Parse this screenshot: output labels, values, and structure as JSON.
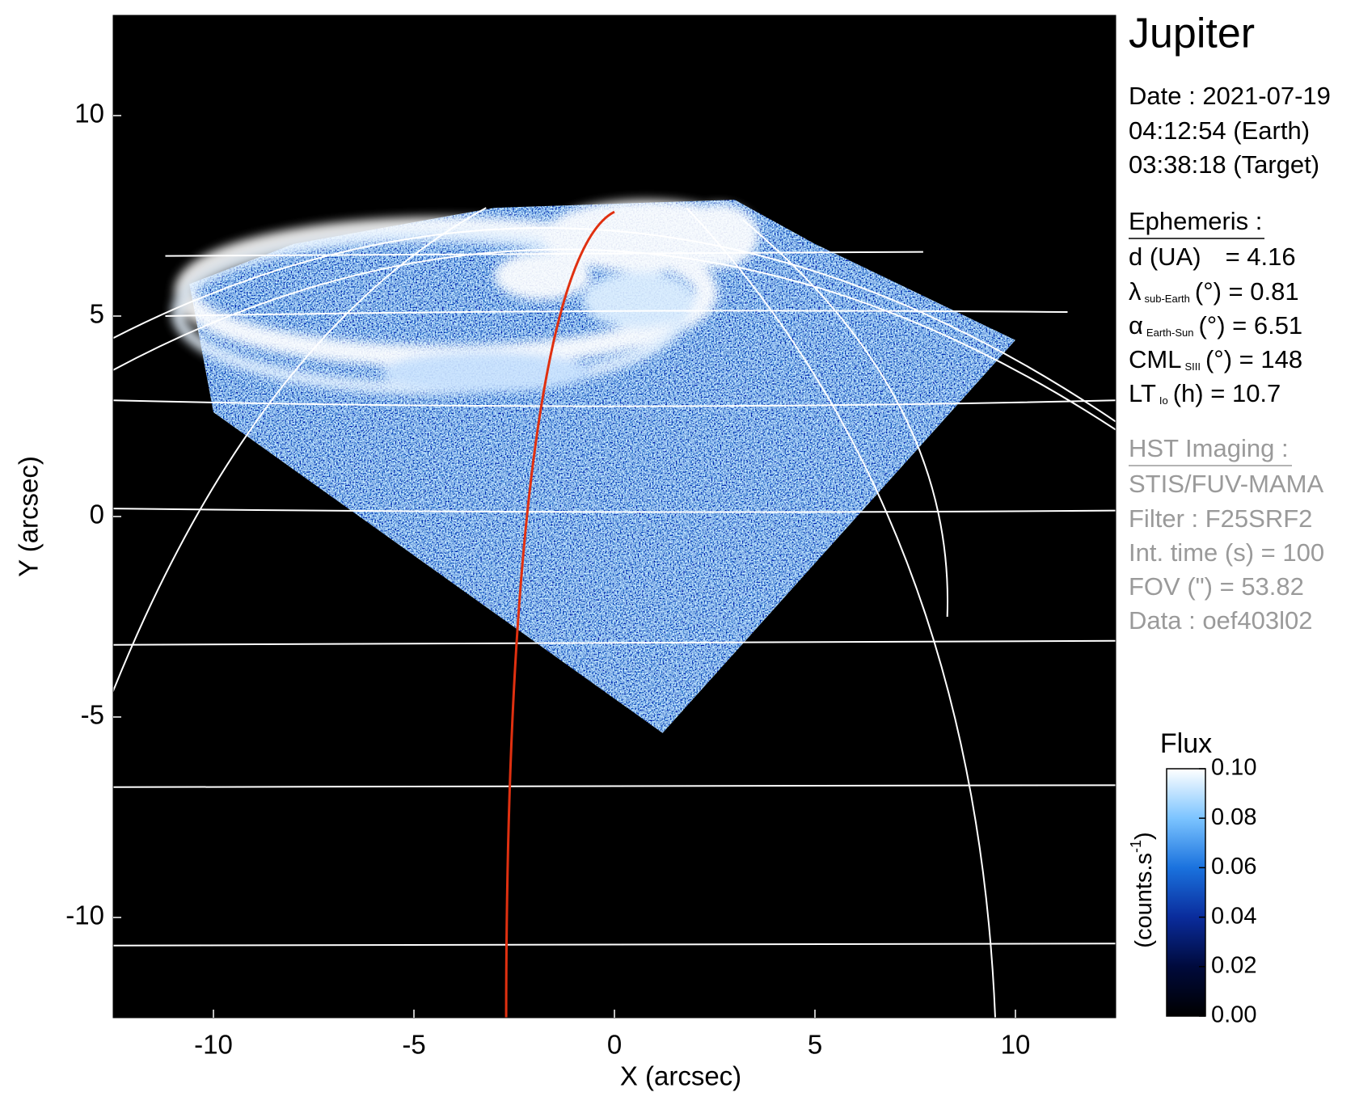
{
  "chart_data": {
    "type": "image",
    "xlabel": "X (arcsec)",
    "ylabel": "Y (arcsec)",
    "xlim": [
      -12.5,
      12.5
    ],
    "ylim": [
      -12.5,
      12.5
    ],
    "xticks": [
      -10,
      -5,
      0,
      5,
      10
    ],
    "yticks": [
      -10,
      -5,
      0,
      5,
      10
    ],
    "colorbar": {
      "title": "Flux",
      "label": "(counts.s",
      "label_sup": "-1",
      "label_end": ")",
      "lim": [
        0,
        0.1
      ],
      "ticks": [
        {
          "value": 0,
          "label": "0.00"
        },
        {
          "value": 0.02,
          "label": "0.02"
        },
        {
          "value": 0.04,
          "label": "0.04"
        },
        {
          "value": 0.06,
          "label": "0.06"
        },
        {
          "value": 0.08,
          "label": "0.08"
        },
        {
          "value": 0.1,
          "label": "0.10"
        }
      ],
      "colors": [
        "#000000",
        "#000a3c",
        "#0a2c9c",
        "#1a72de",
        "#7cc4ff",
        "#ffffff"
      ]
    }
  },
  "info": {
    "title": "Jupiter",
    "date": [
      "Date : 2021-07-19",
      "04:12:54 (Earth)",
      "03:38:18 (Target)"
    ],
    "ephemeris_title": "Ephemeris :",
    "ephemeris": [
      {
        "label": "d (UA)",
        "text": "= 4.16"
      },
      {
        "label": "λ",
        "sub": "sub-Earth",
        "text": "(°) = 0.81"
      },
      {
        "label": "α",
        "sub": "Earth-Sun",
        "text": "(°) = 6.51"
      },
      {
        "label": "CML",
        "sub": "SIII",
        "text": "(°) = 148"
      },
      {
        "label": "LT",
        "sub": "Io",
        "text": "(h) = 10.7"
      }
    ],
    "hst_title": "HST Imaging :",
    "hst": [
      "STIS/FUV-MAMA",
      "Filter : F25SRF2",
      "Int. time (s) = 100",
      "FOV (\") = 53.82",
      "Data : oef403l02"
    ]
  }
}
